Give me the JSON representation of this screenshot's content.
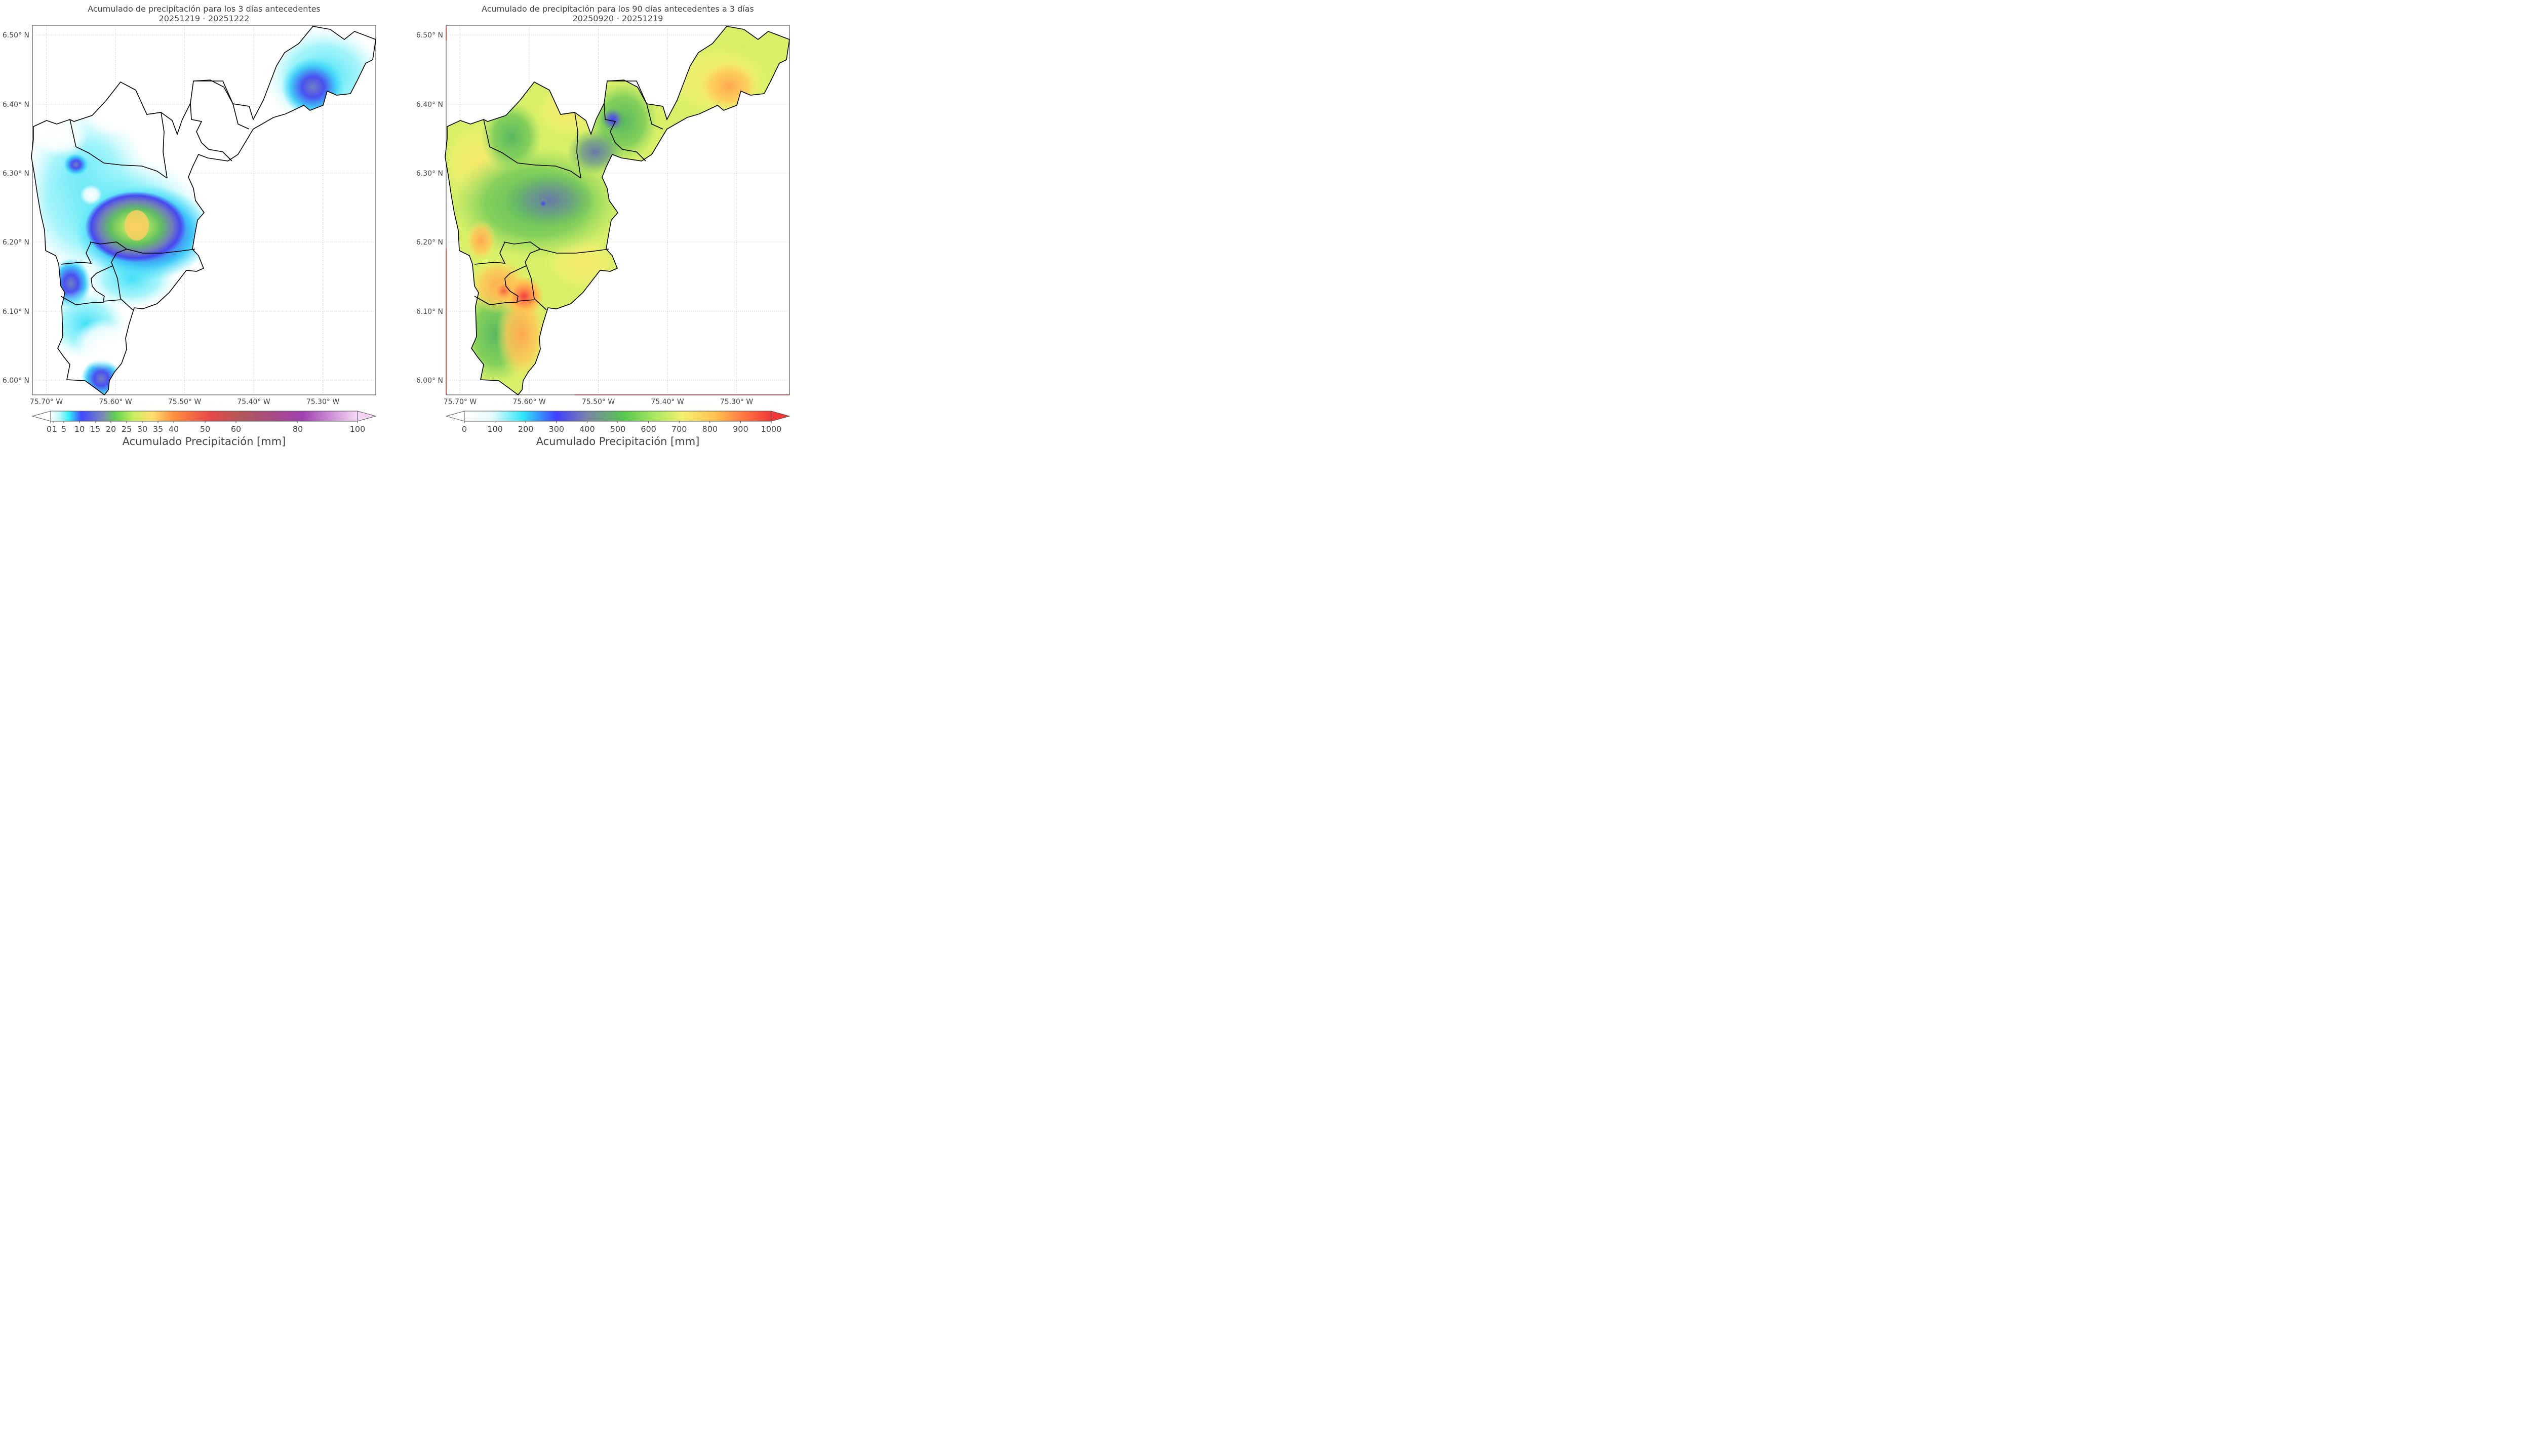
{
  "chart_data": [
    {
      "type": "heatmap",
      "title_line1": "Acumulado de precipitación para los 3 días antecedentes",
      "title_line2": "20251219 - 20251222",
      "x_ticks": [
        "75.70° W",
        "75.60° W",
        "75.50° W",
        "75.40° W",
        "75.30° W"
      ],
      "y_ticks": [
        "6.50° N",
        "6.40° N",
        "6.30° N",
        "6.20° N",
        "6.10° N",
        "6.00° N"
      ],
      "colorbar_label": "Acumulado Precipitación [mm]",
      "colorbar_ticks": [
        "0",
        "1",
        "5",
        "10",
        "15",
        "20",
        "25",
        "30",
        "35",
        "40",
        "50",
        "60",
        "80",
        "100"
      ],
      "colorbar_range": [
        0,
        100
      ],
      "colorbar_extend": "both",
      "maxima": [
        {
          "location": "center (~75.57° W, 6.22° N)",
          "value_range_mm": "30-35"
        },
        {
          "location": "northeast (~75.32° W, 6.42° N)",
          "value_range_mm": "10-15"
        },
        {
          "location": "south (~75.61° W, 6.01° N)",
          "value_range_mm": "5-10"
        }
      ]
    },
    {
      "type": "heatmap",
      "title_line1": "Acumulado de precipitación para los 90 días antecedentes a 3 días",
      "title_line2": "20250920 - 20251219",
      "x_ticks": [
        "75.70° W",
        "75.60° W",
        "75.50° W",
        "75.40° W",
        "75.30° W"
      ],
      "y_ticks": [
        "6.50° N",
        "6.40° N",
        "6.30° N",
        "6.20° N",
        "6.10° N",
        "6.00° N"
      ],
      "colorbar_label": "Acumulado Precipitación [mm]",
      "colorbar_ticks": [
        "0",
        "100",
        "200",
        "300",
        "400",
        "500",
        "600",
        "700",
        "800",
        "900",
        "1000"
      ],
      "colorbar_range": [
        0,
        1000
      ],
      "colorbar_extend": "both",
      "maxima": [
        {
          "location": "south-center (~75.60° W, 6.11° N)",
          "value_range_mm": "900-1000"
        },
        {
          "location": "northeast (~75.32° W, 6.42° N)",
          "value_range_mm": "700-800"
        },
        {
          "location": "north (~75.48° W, 6.38° N)",
          "value_range_mm": "300-400"
        }
      ]
    }
  ]
}
